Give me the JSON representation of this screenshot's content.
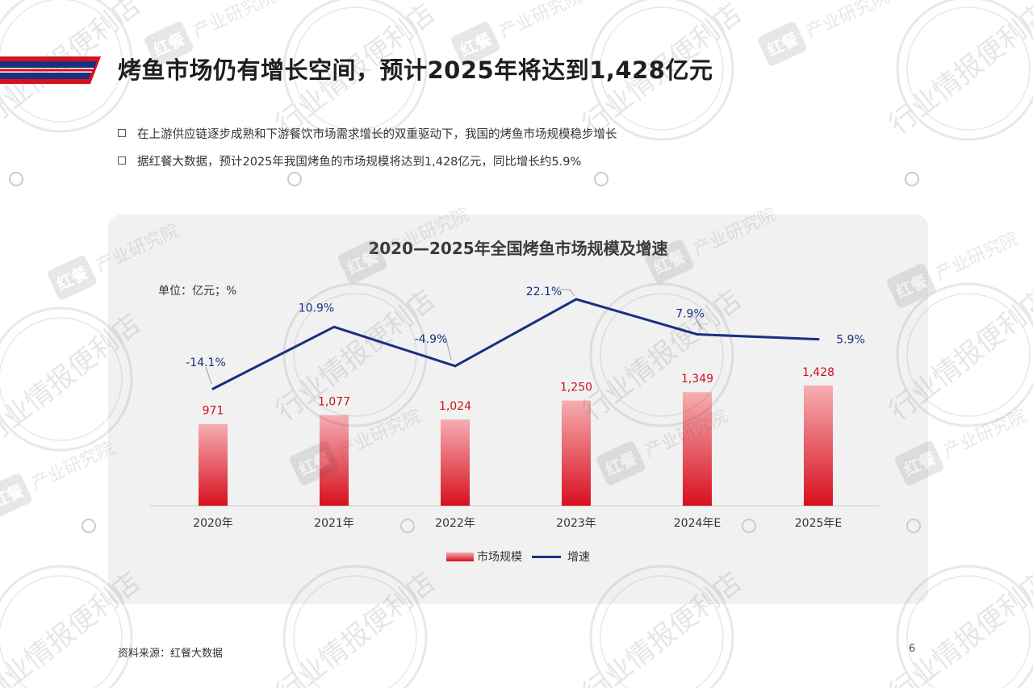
{
  "header": {
    "title": "烤鱼市场仍有增长空间，预计2025年将达到1,428亿元"
  },
  "bullets": [
    "在上游供应链逐步成熟和下游餐饮市场需求增长的双重驱动下，我国的烤鱼市场规模稳步增长",
    "据红餐大数据，预计2025年我国烤鱼的市场规模将达到1,428亿元，同比增长约5.9%"
  ],
  "chart_data": {
    "type": "bar",
    "title": "2020—2025年全国烤鱼市场规模及增速",
    "unit": "单位：亿元；%",
    "categories": [
      "2020年",
      "2021年",
      "2022年",
      "2023年",
      "2024年E",
      "2025年E"
    ],
    "series": [
      {
        "name": "市场规模",
        "type": "bar",
        "values": [
          971,
          1077,
          1024,
          1250,
          1349,
          1428
        ],
        "labels": [
          "971",
          "1,077",
          "1,024",
          "1,250",
          "1,349",
          "1,428"
        ]
      },
      {
        "name": "增速",
        "type": "line",
        "values": [
          -14.1,
          10.9,
          -4.9,
          22.1,
          7.9,
          5.9
        ],
        "labels": [
          "-14.1%",
          "10.9%",
          "-4.9%",
          "22.1%",
          "7.9%",
          "5.9%"
        ]
      }
    ],
    "legend": "bottom",
    "grid": false
  },
  "footer": {
    "source": "资料来源：红餐大数据",
    "page": "6"
  },
  "watermark": {
    "text_main": "行业情报便利店",
    "text_sub": "产业研究院",
    "logo": "红餐"
  },
  "colors": {
    "accent_red": "#d7101e",
    "accent_blue": "#1a2f80",
    "bar_top": "#f6aeb2",
    "bar_bottom": "#d7101e",
    "card_bg": "#f1f1f1"
  }
}
